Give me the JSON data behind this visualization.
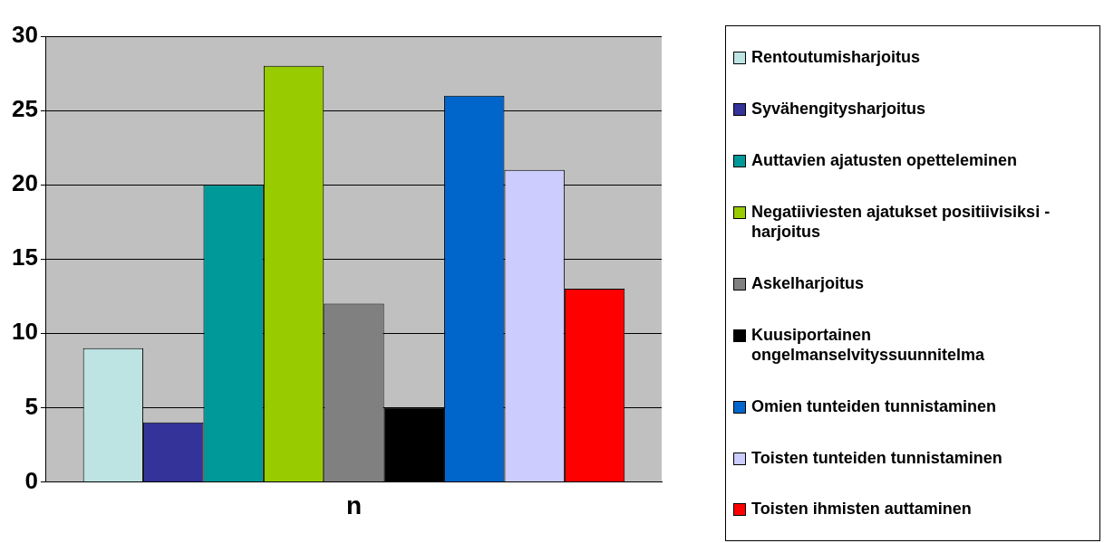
{
  "chart_data": {
    "type": "bar",
    "categories": [
      "n"
    ],
    "series": [
      {
        "name": "Rentoutumisharjoitus",
        "color": "#bde3e3",
        "values": [
          9
        ]
      },
      {
        "name": "Syvähengitysharjoitus",
        "color": "#333399",
        "values": [
          4
        ]
      },
      {
        "name": "Auttavien ajatusten opetteleminen",
        "color": "#009999",
        "values": [
          20
        ]
      },
      {
        "name": "Negatiiviesten ajatukset positiivisiksi -harjoitus",
        "color": "#99cc00",
        "values": [
          28
        ]
      },
      {
        "name": "Askelharjoitus",
        "color": "#808080",
        "values": [
          12
        ]
      },
      {
        "name": "Kuusiportainen ongelmanselvityssuunnitelma",
        "color": "#000000",
        "values": [
          5
        ]
      },
      {
        "name": "Omien tunteiden tunnistaminen",
        "color": "#0066cc",
        "values": [
          26
        ]
      },
      {
        "name": "Toisten tunteiden tunnistaminen",
        "color": "#ccccff",
        "values": [
          21
        ]
      },
      {
        "name": "Toisten ihmisten auttaminen",
        "color": "#ff0000",
        "values": [
          13
        ]
      }
    ],
    "ylim": [
      0,
      30
    ],
    "yticks": [
      0,
      5,
      10,
      15,
      20,
      25,
      30
    ],
    "grid": "y",
    "legend": "right"
  }
}
